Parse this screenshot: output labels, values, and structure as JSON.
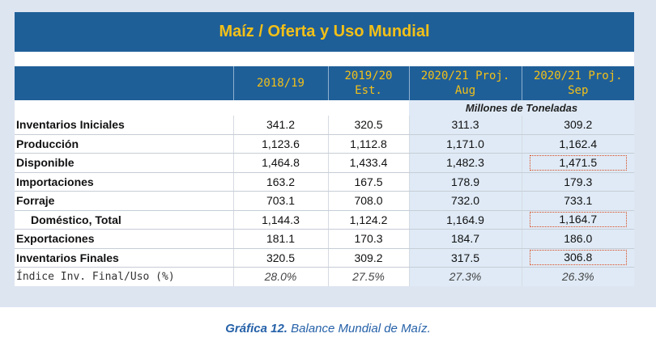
{
  "title": "Maíz / Oferta y Uso Mundial",
  "headers": [
    "",
    "2018/19",
    "2019/20\nEst.",
    "2020/21 Proj.\nAug",
    "2020/21 Proj.\nSep"
  ],
  "header_lines": {
    "c1": [
      "2018/19"
    ],
    "c2": [
      "2019/20",
      "Est."
    ],
    "c3": [
      "2020/21 Proj.",
      "Aug"
    ],
    "c4": [
      "2020/21 Proj.",
      "Sep"
    ]
  },
  "units": "Millones de Toneladas",
  "rows": [
    {
      "label": "Inventarios Iniciales",
      "values": [
        "341.2",
        "320.5",
        "311.3",
        "309.2"
      ]
    },
    {
      "label": "Producción",
      "values": [
        "1,123.6",
        "1,112.8",
        "1,171.0",
        "1,162.4"
      ]
    },
    {
      "label": "Disponible",
      "values": [
        "1,464.8",
        "1,433.4",
        "1,482.3",
        "1,471.5"
      ]
    },
    {
      "label": "Importaciones",
      "values": [
        "163.2",
        "167.5",
        "178.9",
        "179.3"
      ]
    },
    {
      "label": "Forraje",
      "values": [
        "703.1",
        "708.0",
        "732.0",
        "733.1"
      ]
    },
    {
      "label": "Doméstico, Total",
      "values": [
        "1,144.3",
        "1,124.2",
        "1,164.9",
        "1,164.7"
      ]
    },
    {
      "label": "Exportaciones",
      "values": [
        "181.1",
        "170.3",
        "184.7",
        "186.0"
      ]
    },
    {
      "label": "Inventarios Finales",
      "values": [
        "320.5",
        "309.2",
        "317.5",
        "306.8"
      ]
    },
    {
      "label": "Índice Inv. Final/Uso (%)",
      "values": [
        "28.0%",
        "27.5%",
        "27.3%",
        "26.3%"
      ]
    }
  ],
  "caption": {
    "label": "Gráfica 12.",
    "text": "Balance Mundial de Maíz."
  },
  "colors": {
    "header_bg": "#1f5f98",
    "header_text": "#f2c018",
    "highlight_border": "#d9481c",
    "shade": "#dfeaf6"
  }
}
